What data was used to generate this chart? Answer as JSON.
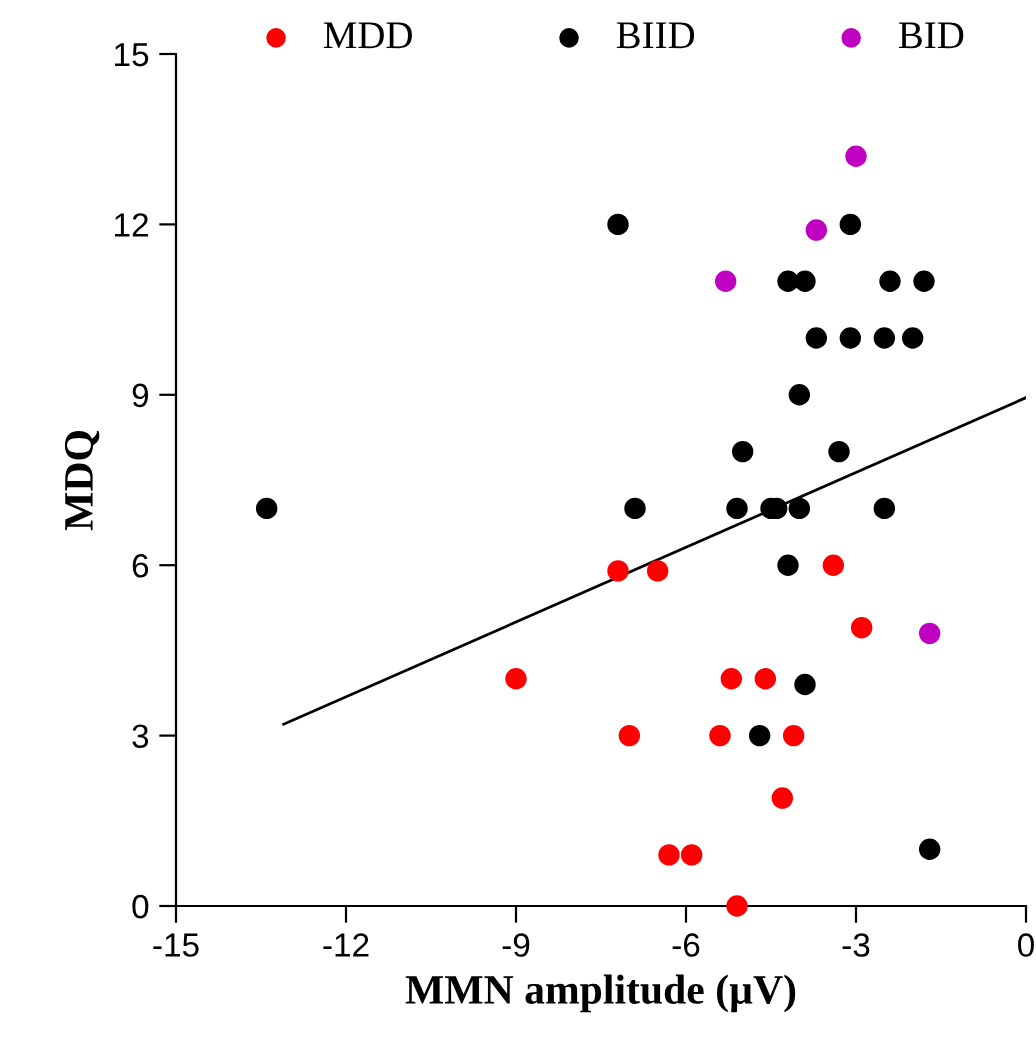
{
  "chart_data": {
    "type": "scatter",
    "xlabel": "MMN amplitude (µV)",
    "ylabel": "MDQ",
    "xlim": [
      -15,
      0
    ],
    "ylim": [
      0,
      15
    ],
    "xticks": [
      -15,
      -12,
      -9,
      -6,
      -3,
      0
    ],
    "yticks": [
      0,
      3,
      6,
      9,
      12,
      15
    ],
    "grid": false,
    "legend": "top",
    "marker": "circle",
    "series": [
      {
        "name": "MDD",
        "color": "#ff0000",
        "x": [
          -7.2,
          -6.5,
          -3.4,
          -2.9,
          -9.0,
          -5.2,
          -4.6,
          -7.0,
          -5.4,
          -4.1,
          -4.3,
          -6.3,
          -5.9,
          -5.1
        ],
        "values": [
          5.9,
          5.9,
          6.0,
          4.9,
          4.0,
          4.0,
          4.0,
          3.0,
          3.0,
          3.0,
          1.9,
          0.9,
          0.9,
          0
        ]
      },
      {
        "name": "BIID",
        "color": "#000000",
        "x": [
          -7.2,
          -3.1,
          -4.2,
          -3.9,
          -2.4,
          -1.8,
          -3.7,
          -3.1,
          -2.5,
          -2.0,
          -4.0,
          -5.0,
          -3.3,
          -13.4,
          -6.9,
          -5.1,
          -4.5,
          -4.4,
          -4.0,
          -2.5,
          -4.2,
          -3.9,
          -4.7,
          -1.7
        ],
        "values": [
          12,
          12,
          11,
          11,
          11,
          11,
          10,
          10,
          10,
          10,
          9,
          8,
          8,
          7,
          7,
          7,
          7,
          7,
          7,
          7,
          6,
          3.9,
          3,
          1
        ]
      },
      {
        "name": "BID",
        "color": "#c000c0",
        "x": [
          -3.0,
          -3.7,
          -5.3,
          -1.7
        ],
        "values": [
          13.2,
          11.9,
          11,
          4.8
        ]
      },
      {
        "type": "line",
        "color": "#000000",
        "line_style": "solid",
        "marker": "none",
        "x": [
          -13.1,
          0
        ],
        "values": [
          3.2,
          8.95
        ]
      }
    ]
  }
}
